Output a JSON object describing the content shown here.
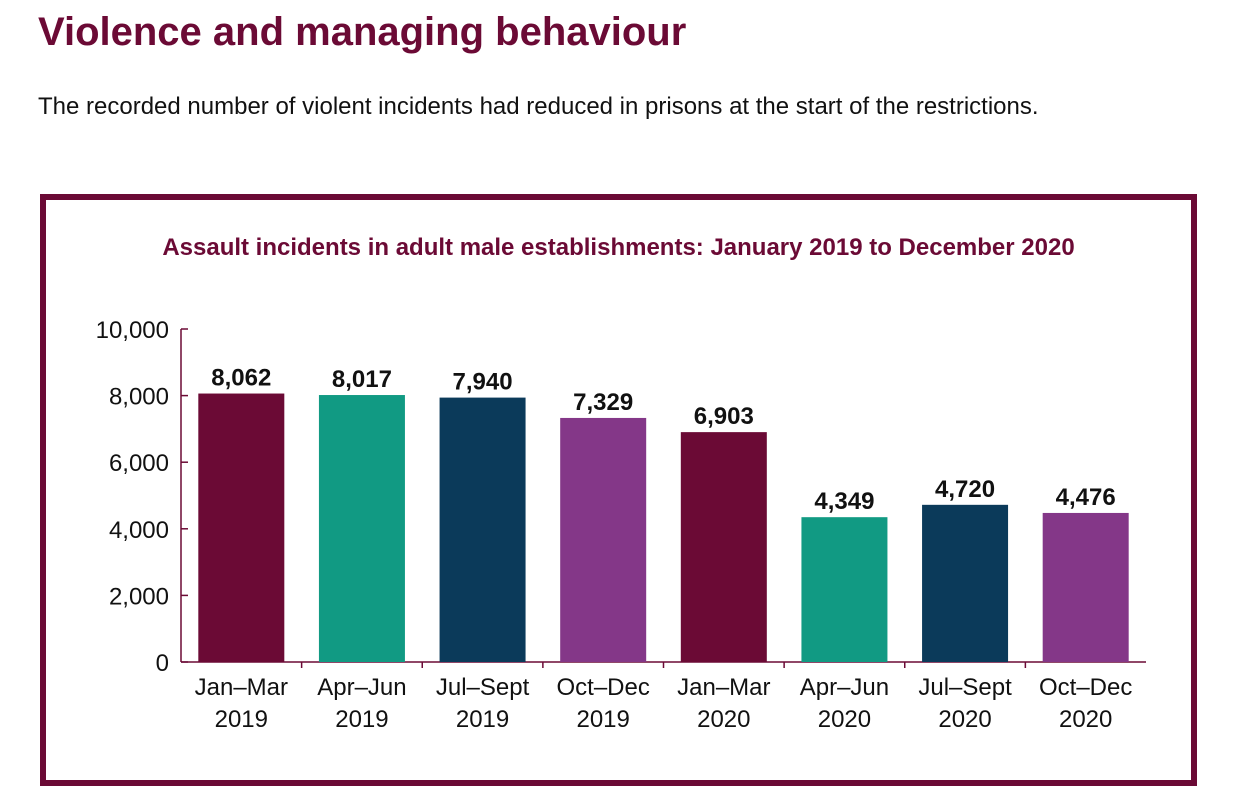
{
  "page": {
    "heading": "Violence and managing behaviour",
    "intro": "The recorded number of violent incidents had reduced in prisons at the start of the restrictions."
  },
  "colors": {
    "brand": "#6b0a35",
    "axis": "#6b0a35"
  },
  "chart_data": {
    "type": "bar",
    "title": "Assault incidents in adult male establishments: January 2019 to December 2020",
    "xlabel": "",
    "ylabel": "",
    "ylim": [
      0,
      10000
    ],
    "yticks": [
      0,
      2000,
      4000,
      6000,
      8000,
      10000
    ],
    "ytick_labels": [
      "0",
      "2,000",
      "4,000",
      "6,000",
      "8,000",
      "10,000"
    ],
    "grid": false,
    "categories": [
      [
        "Jan–Mar",
        "2019"
      ],
      [
        "Apr–Jun",
        "2019"
      ],
      [
        "Jul–Sept",
        "2019"
      ],
      [
        "Oct–Dec",
        "2019"
      ],
      [
        "Jan–Mar",
        "2020"
      ],
      [
        "Apr–Jun",
        "2020"
      ],
      [
        "Jul–Sept",
        "2020"
      ],
      [
        "Oct–Dec",
        "2020"
      ]
    ],
    "values": [
      8062,
      8017,
      7940,
      7329,
      6903,
      4349,
      4720,
      4476
    ],
    "value_labels": [
      "8,062",
      "8,017",
      "7,940",
      "7,329",
      "6,903",
      "4,349",
      "4,720",
      "4,476"
    ],
    "bar_colors": [
      "#6b0a35",
      "#119a83",
      "#0b3a5a",
      "#843788",
      "#6b0a35",
      "#119a83",
      "#0b3a5a",
      "#843788"
    ]
  }
}
